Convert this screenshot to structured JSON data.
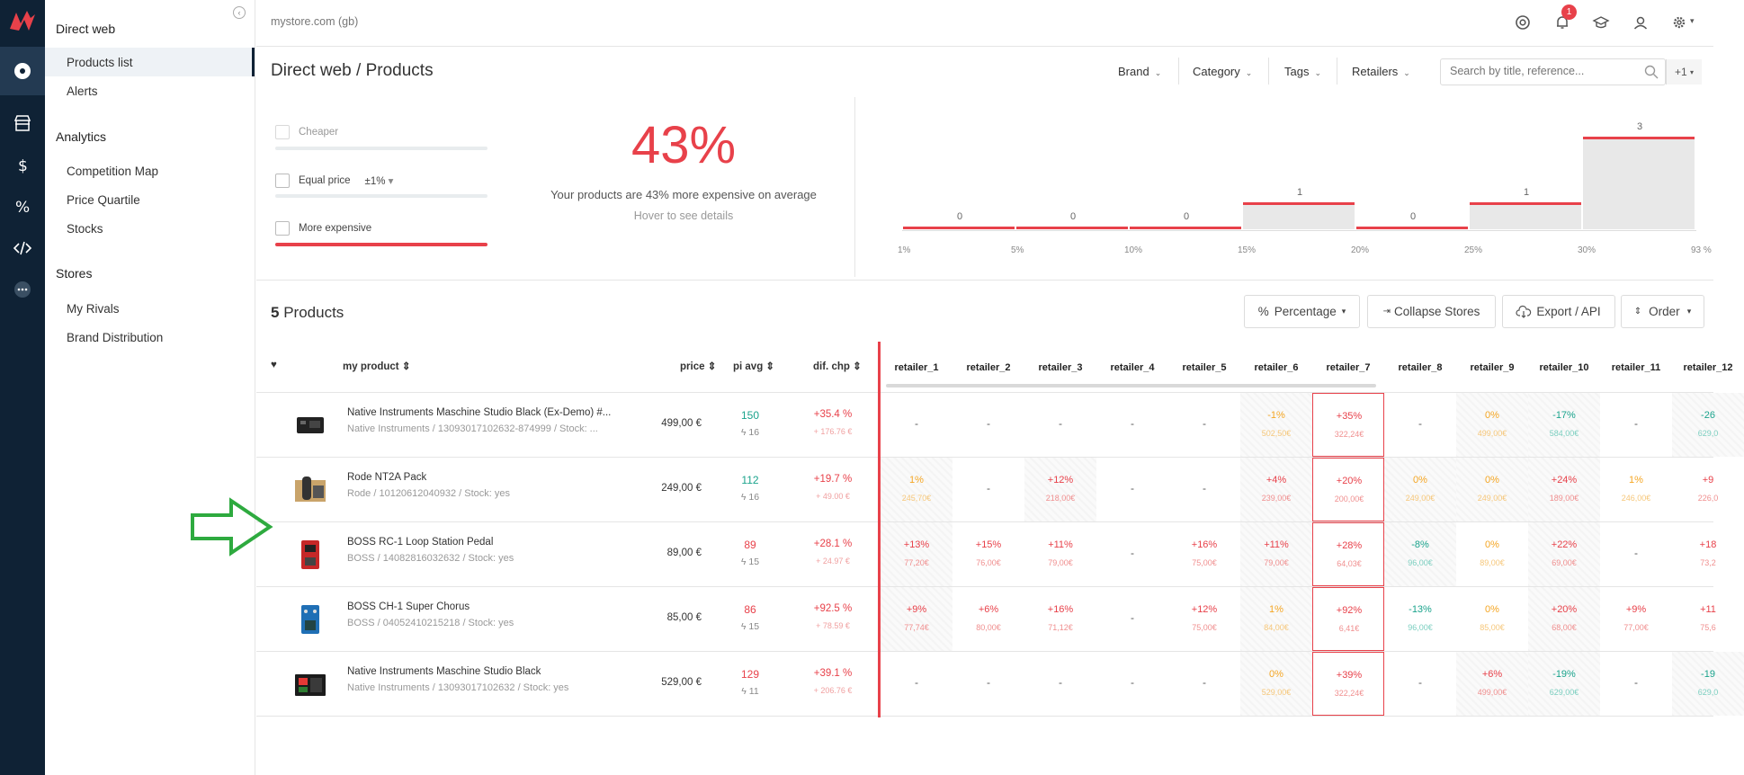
{
  "topbar": {
    "store": "mystore.com (gb)",
    "notifications": "1",
    "icons": [
      "chrome-icon",
      "bell-icon",
      "graduation-cap-icon",
      "user-icon",
      "gear-icon"
    ]
  },
  "sidebar": {
    "section1": "Direct web",
    "products_list": "Products list",
    "alerts": "Alerts",
    "section2": "Analytics",
    "competition_map": "Competition Map",
    "price_quartile": "Price Quartile",
    "stocks": "Stocks",
    "section3": "Stores",
    "my_rivals": "My Rivals",
    "brand_distribution": "Brand Distribution"
  },
  "header": {
    "title": "Direct web / Products",
    "filters": [
      "Brand",
      "Category",
      "Tags",
      "Retailers"
    ],
    "search_placeholder": "Search by title, reference...",
    "plus": "+1"
  },
  "summary": {
    "cheaper": "Cheaper",
    "equal": "Equal price",
    "equal_tol": "±1%",
    "more": "More expensive",
    "percent": "43%",
    "avg_text": "Your products are 43% more expensive on average",
    "hover": "Hover to see details"
  },
  "histogram": {
    "ticks": [
      "1%",
      "5%",
      "10%",
      "15%",
      "20%",
      "25%",
      "30%",
      "93 %"
    ],
    "values": [
      "0",
      "0",
      "0",
      "1",
      "0",
      "1",
      "3"
    ],
    "counts": [
      0,
      0,
      0,
      1,
      0,
      1,
      3
    ]
  },
  "table": {
    "count": "5",
    "count_label": "Products",
    "buttons": {
      "percentage": "Percentage",
      "collapse": "Collapse Stores",
      "export": "Export / API",
      "order": "Order"
    },
    "headers": {
      "product": "my product",
      "price": "price",
      "pi": "pi avg",
      "dif": "dif. chp"
    },
    "retailers": [
      "retailer_1",
      "retailer_2",
      "retailer_3",
      "retailer_4",
      "retailer_5",
      "retailer_6",
      "retailer_7",
      "retailer_8",
      "retailer_9",
      "retailer_10",
      "retailer_11",
      "retailer_12"
    ],
    "rows": [
      {
        "name": "Native Instruments Maschine Studio Black (Ex-Demo) #...",
        "sub": "Native Instruments / 13093017102632-874999 / Stock: ...",
        "price": "499,00 €",
        "pi": "150",
        "pi_sub": "16",
        "dif": "+35.4 %",
        "dif_sub": "+ 176.76 €"
      },
      {
        "name": "Rode NT2A Pack",
        "sub": "Rode / 10120612040932 / Stock: yes",
        "price": "249,00 €",
        "pi": "112",
        "pi_sub": "16",
        "dif": "+19.7 %",
        "dif_sub": "+ 49.00 €"
      },
      {
        "name": "BOSS RC-1 Loop Station Pedal",
        "sub": "BOSS / 14082816032632 / Stock: yes",
        "price": "89,00 €",
        "pi": "89",
        "pi_sub": "15",
        "dif": "+28.1 %",
        "dif_sub": "+ 24.97 €"
      },
      {
        "name": "BOSS CH-1 Super Chorus",
        "sub": "BOSS / 04052410215218 / Stock: yes",
        "price": "85,00 €",
        "pi": "86",
        "pi_sub": "15",
        "dif": "+92.5 %",
        "dif_sub": "+ 78.59 €"
      },
      {
        "name": "Native Instruments Maschine Studio Black",
        "sub": "Native Instruments / 13093017102632 / Stock: yes",
        "price": "529,00 €",
        "pi": "129",
        "pi_sub": "11",
        "dif": "+39.1 %",
        "dif_sub": "+ 206.76 €"
      }
    ],
    "cells": [
      [
        {
          "v": "-"
        },
        {
          "v": "-"
        },
        {
          "v": "-"
        },
        {
          "v": "-"
        },
        {
          "v": "-"
        },
        {
          "v": "-1%",
          "s": "502,50€",
          "c": "org",
          "h": 1
        },
        {
          "v": "+35%",
          "s": "322,24€",
          "c": "red",
          "r": 1
        },
        {
          "v": "-"
        },
        {
          "v": "0%",
          "s": "499,00€",
          "c": "org",
          "h": 1
        },
        {
          "v": "-17%",
          "s": "584,00€",
          "c": "grn",
          "h": 1
        },
        {
          "v": "-"
        },
        {
          "v": "-26",
          "s": "629,0",
          "c": "grn",
          "h": 1
        }
      ],
      [
        {
          "v": "1%",
          "s": "245,70€",
          "c": "org",
          "h": 1
        },
        {
          "v": "-"
        },
        {
          "v": "+12%",
          "s": "218,00€",
          "c": "red",
          "h": 1
        },
        {
          "v": "-"
        },
        {
          "v": "-"
        },
        {
          "v": "+4%",
          "s": "239,00€",
          "c": "red",
          "h": 1
        },
        {
          "v": "+20%",
          "s": "200,00€",
          "c": "red",
          "r": 1
        },
        {
          "v": "0%",
          "s": "249,00€",
          "c": "org",
          "h": 1
        },
        {
          "v": "0%",
          "s": "249,00€",
          "c": "org",
          "h": 1
        },
        {
          "v": "+24%",
          "s": "189,00€",
          "c": "red",
          "h": 1
        },
        {
          "v": "1%",
          "s": "246,00€",
          "c": "org"
        },
        {
          "v": "+9",
          "s": "226,0",
          "c": "red"
        }
      ],
      [
        {
          "v": "+13%",
          "s": "77,20€",
          "c": "red",
          "h": 1
        },
        {
          "v": "+15%",
          "s": "76,00€",
          "c": "red"
        },
        {
          "v": "+11%",
          "s": "79,00€",
          "c": "red"
        },
        {
          "v": "-"
        },
        {
          "v": "+16%",
          "s": "75,00€",
          "c": "red"
        },
        {
          "v": "+11%",
          "s": "79,00€",
          "c": "red",
          "h": 1
        },
        {
          "v": "+28%",
          "s": "64,03€",
          "c": "red",
          "r": 1
        },
        {
          "v": "-8%",
          "s": "96,00€",
          "c": "grn",
          "h": 1
        },
        {
          "v": "0%",
          "s": "89,00€",
          "c": "org"
        },
        {
          "v": "+22%",
          "s": "69,00€",
          "c": "red",
          "h": 1
        },
        {
          "v": "-"
        },
        {
          "v": "+18",
          "s": "73,2",
          "c": "red"
        }
      ],
      [
        {
          "v": "+9%",
          "s": "77,74€",
          "c": "red",
          "h": 1
        },
        {
          "v": "+6%",
          "s": "80,00€",
          "c": "red"
        },
        {
          "v": "+16%",
          "s": "71,12€",
          "c": "red"
        },
        {
          "v": "-"
        },
        {
          "v": "+12%",
          "s": "75,00€",
          "c": "red"
        },
        {
          "v": "1%",
          "s": "84,00€",
          "c": "org",
          "h": 1
        },
        {
          "v": "+92%",
          "s": "6,41€",
          "c": "red",
          "r": 1
        },
        {
          "v": "-13%",
          "s": "96,00€",
          "c": "grn"
        },
        {
          "v": "0%",
          "s": "85,00€",
          "c": "org"
        },
        {
          "v": "+20%",
          "s": "68,00€",
          "c": "red",
          "h": 1
        },
        {
          "v": "+9%",
          "s": "77,00€",
          "c": "red"
        },
        {
          "v": "+11",
          "s": "75,6",
          "c": "red"
        }
      ],
      [
        {
          "v": "-"
        },
        {
          "v": "-"
        },
        {
          "v": "-"
        },
        {
          "v": "-"
        },
        {
          "v": "-"
        },
        {
          "v": "0%",
          "s": "529,00€",
          "c": "org",
          "h": 1
        },
        {
          "v": "+39%",
          "s": "322,24€",
          "c": "red",
          "r": 1
        },
        {
          "v": "-"
        },
        {
          "v": "+6%",
          "s": "499,00€",
          "c": "red",
          "h": 1
        },
        {
          "v": "-19%",
          "s": "629,00€",
          "c": "grn",
          "h": 1
        },
        {
          "v": "-"
        },
        {
          "v": "-19",
          "s": "629,0",
          "c": "grn",
          "h": 1
        }
      ]
    ]
  }
}
